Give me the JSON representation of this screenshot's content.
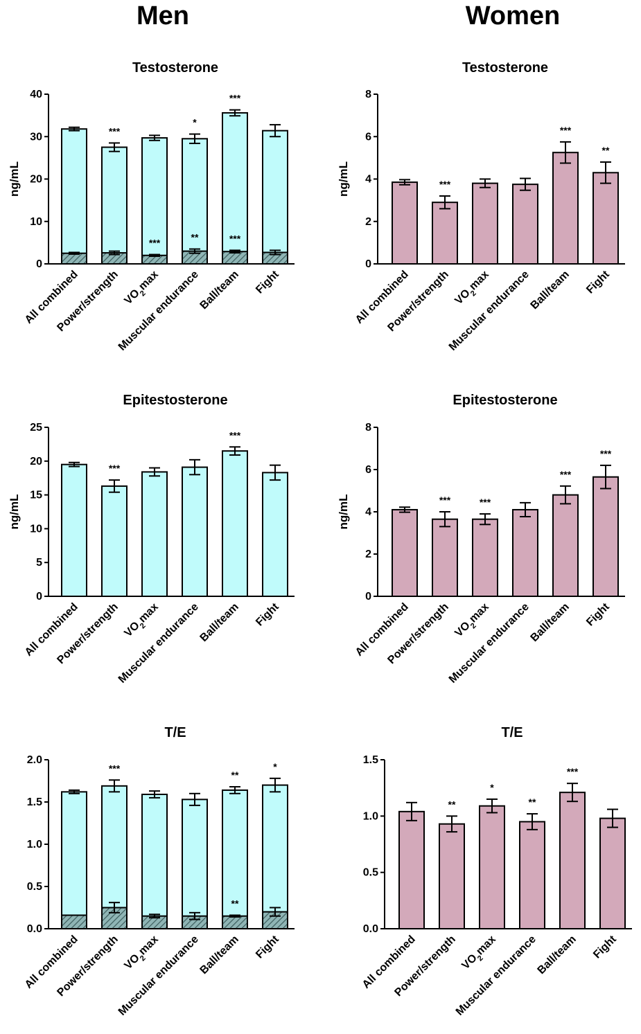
{
  "columns": {
    "men": "Men",
    "women": "Women"
  },
  "colors": {
    "men_fill": "#c0fbfb",
    "women_fill": "#d3a9ba",
    "hatch_fill": "#8fb5b5",
    "stroke": "#000000"
  },
  "categories": [
    "All combined",
    "Power/strength",
    "VO2max",
    "Muscular endurance",
    "Ball/team",
    "Fight"
  ],
  "chart_data": [
    {
      "type": "bar",
      "panel": "men",
      "title": "Testosterone",
      "ylabel": "ng/mL",
      "ylim": [
        0,
        40
      ],
      "yticks": [
        0,
        10,
        20,
        30,
        40
      ],
      "tick_format": "int",
      "series": [
        {
          "values": [
            31.8,
            27.5,
            29.7,
            29.5,
            35.6,
            31.4
          ],
          "errors": [
            0.4,
            1.0,
            0.6,
            1.1,
            0.7,
            1.4
          ],
          "significance": [
            "",
            "***",
            "",
            "*",
            "***",
            ""
          ]
        },
        {
          "pattern": "hatched",
          "values": [
            2.5,
            2.6,
            2.0,
            3.0,
            2.9,
            2.7
          ],
          "errors": [
            0.2,
            0.4,
            0.2,
            0.5,
            0.3,
            0.5
          ],
          "significance": [
            "",
            "",
            "***",
            "**",
            "***",
            ""
          ]
        }
      ]
    },
    {
      "type": "bar",
      "panel": "women",
      "title": "Testosterone",
      "ylabel": "ng/mL",
      "ylim": [
        0,
        8
      ],
      "yticks": [
        0,
        2,
        4,
        6,
        8
      ],
      "tick_format": "int",
      "series": [
        {
          "values": [
            3.85,
            2.9,
            3.8,
            3.75,
            5.25,
            4.3
          ],
          "errors": [
            0.12,
            0.3,
            0.2,
            0.28,
            0.5,
            0.5
          ],
          "significance": [
            "",
            "***",
            "",
            "",
            "***",
            "**"
          ]
        }
      ]
    },
    {
      "type": "bar",
      "panel": "men",
      "title": "Epitestosterone",
      "ylabel": "ng/mL",
      "ylim": [
        0,
        25
      ],
      "yticks": [
        0,
        5,
        10,
        15,
        20,
        25
      ],
      "tick_format": "int",
      "series": [
        {
          "values": [
            19.5,
            16.3,
            18.4,
            19.1,
            21.5,
            18.3
          ],
          "errors": [
            0.3,
            0.9,
            0.6,
            1.1,
            0.6,
            1.1
          ],
          "significance": [
            "",
            "***",
            "",
            "",
            "***",
            ""
          ]
        }
      ]
    },
    {
      "type": "bar",
      "panel": "women",
      "title": "Epitestosterone",
      "ylabel": "ng/mL",
      "ylim": [
        0,
        8
      ],
      "yticks": [
        0,
        2,
        4,
        6,
        8
      ],
      "tick_format": "int",
      "series": [
        {
          "values": [
            4.1,
            3.65,
            3.65,
            4.1,
            4.8,
            5.65
          ],
          "errors": [
            0.12,
            0.35,
            0.25,
            0.33,
            0.42,
            0.55
          ],
          "significance": [
            "",
            "***",
            "***",
            "",
            "***",
            "***"
          ]
        }
      ]
    },
    {
      "type": "bar",
      "panel": "men",
      "title": "T/E",
      "ylabel": "",
      "ylim": [
        0,
        2.0
      ],
      "yticks": [
        0,
        0.5,
        1.0,
        1.5,
        2.0
      ],
      "tick_format": "1dp",
      "series": [
        {
          "values": [
            1.62,
            1.69,
            1.59,
            1.53,
            1.64,
            1.7
          ],
          "errors": [
            0.02,
            0.07,
            0.04,
            0.07,
            0.04,
            0.08
          ],
          "significance": [
            "",
            "***",
            "",
            "",
            "**",
            "*"
          ]
        },
        {
          "pattern": "hatched",
          "values": [
            0.16,
            0.25,
            0.15,
            0.15,
            0.15,
            0.2
          ],
          "errors": [
            0.0,
            0.06,
            0.02,
            0.04,
            0.01,
            0.05
          ],
          "significance": [
            "",
            "",
            "",
            "",
            "**",
            ""
          ]
        }
      ]
    },
    {
      "type": "bar",
      "panel": "women",
      "title": "T/E",
      "ylabel": "",
      "ylim": [
        0,
        1.5
      ],
      "yticks": [
        0,
        0.5,
        1.0,
        1.5
      ],
      "tick_format": "1dp",
      "series": [
        {
          "values": [
            1.04,
            0.93,
            1.09,
            0.95,
            1.21,
            0.98
          ],
          "errors": [
            0.08,
            0.07,
            0.06,
            0.07,
            0.08,
            0.08
          ],
          "significance": [
            "",
            "**",
            "*",
            "**",
            "***",
            ""
          ]
        }
      ]
    }
  ]
}
